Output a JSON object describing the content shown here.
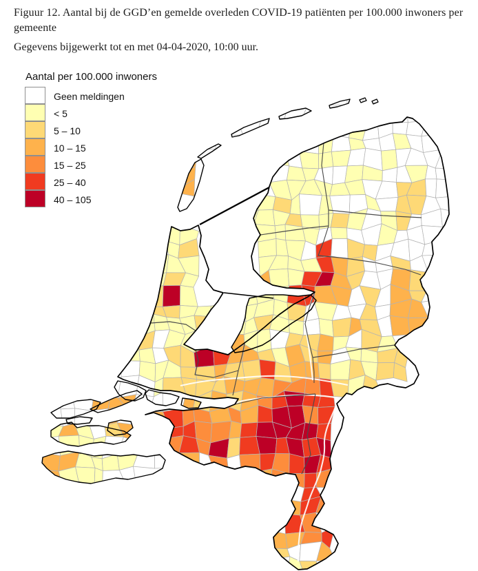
{
  "figure": {
    "title": "Figuur 12.  Aantal bij de GGD’en gemelde overleden COVID-19 patiënten per 100.000 inwoners per gemeente",
    "updated": "Gegevens bijgewerkt tot en met 04-04-2020, 10:00 uur."
  },
  "legend": {
    "title": "Aantal per 100.000 inwoners",
    "items": [
      {
        "label": "Geen meldingen",
        "color": "#FFFFFF"
      },
      {
        "label": "< 5",
        "color": "#FFFFB2"
      },
      {
        "label": "5 – 10",
        "color": "#FED976"
      },
      {
        "label": "10 – 15",
        "color": "#FEB24C"
      },
      {
        "label": "15 – 25",
        "color": "#FD8D3C"
      },
      {
        "label": "25 – 40",
        "color": "#F03B20"
      },
      {
        "label": "40 – 105",
        "color": "#BD0026"
      }
    ]
  },
  "map": {
    "colors": {
      "municipality_border": "#b3b3b3",
      "province_border": "#4b4b4b",
      "coastline": "#000000",
      "water": "#ffffff"
    },
    "grid": {
      "cell_size": 22,
      "cols": 32,
      "rows": [
        "................................",
        "................................",
        "................................",
        "................................",
        "................................",
        "................................",
        ".....................0000.......",
        "..................000.....000...",
        "...............000111001000000..",
        ".............00..1110101001000..",
        "............3...11101110010000..",
        "...........33...11011001100100..",
        "............3...10111111002200..",
        "................11210100102200..",
        "................11121121012000..",
        "...........11....111101001000...",
        "...........12....111050220000...",
        "..........111....11115320020....",
        "..........121...131156320032....",
        "..........261...1115533020320...",
        "..........22111.1112010020330...",
        ".........1111221121101232033....",
        "........1201122311022310210.....",
        "........1102265332132301122.....",
        "........0111223225233212122.....",
        "........00122223334445212.......",
        "....003330003232345655..........",
        "....0003..354434356645..........",
        "...131023..55443566665..........",
        "....1110...45462565656..........",
        "...33111100.3040454565..........",
        "...311100........34454..........",
        "....................5...........",
        "...................354..........",
        "...................54...........",
        "..................3345..........",
        "..................2003..........",
        "...................12..........."
      ]
    }
  }
}
